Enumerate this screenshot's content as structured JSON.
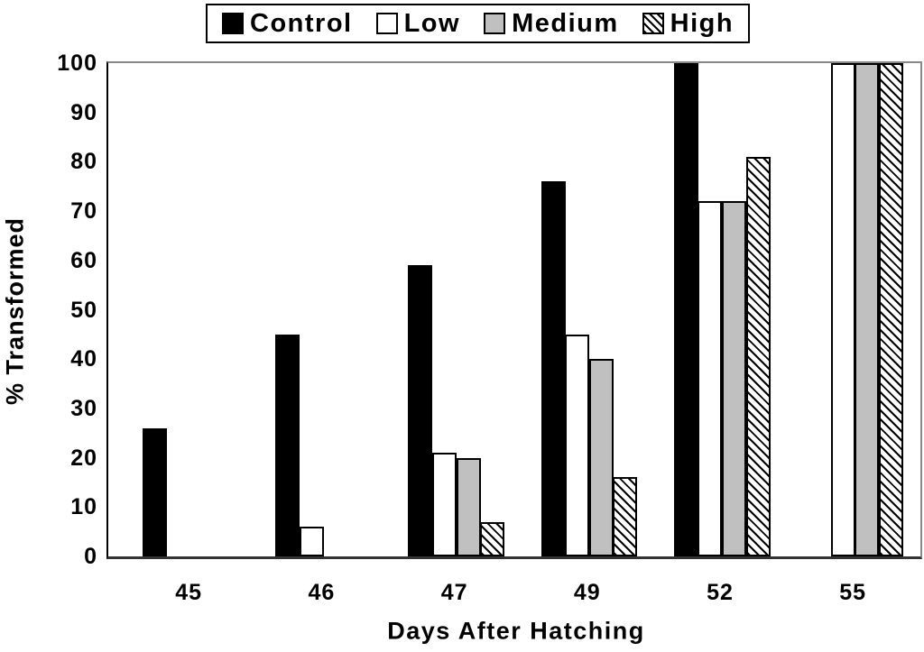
{
  "colors": {
    "control": "#000000",
    "low": "#ffffff",
    "medium": "#c0c0c0",
    "high": "diagonal-hatch-black-on-white",
    "frame_gray": "#888888",
    "axis_black": "#000000"
  },
  "chart_data": {
    "type": "bar",
    "title": "",
    "xlabel": "Days After Hatching",
    "ylabel": "% Transformed",
    "categories": [
      "45",
      "46",
      "47",
      "49",
      "52",
      "55"
    ],
    "series": [
      {
        "name": "Control",
        "style": "solid-black",
        "values": [
          26,
          45,
          59,
          76,
          100,
          null
        ]
      },
      {
        "name": "Low",
        "style": "white",
        "values": [
          null,
          6,
          21,
          45,
          72,
          100
        ]
      },
      {
        "name": "Medium",
        "style": "gray",
        "values": [
          null,
          null,
          20,
          40,
          72,
          100
        ]
      },
      {
        "name": "High",
        "style": "hatched",
        "values": [
          null,
          null,
          7,
          16,
          81,
          100
        ]
      }
    ],
    "ylim": [
      0,
      100
    ],
    "y_ticks": [
      0,
      10,
      20,
      30,
      40,
      50,
      60,
      70,
      80,
      90,
      100
    ],
    "grid": false,
    "legend_position": "top-center"
  }
}
